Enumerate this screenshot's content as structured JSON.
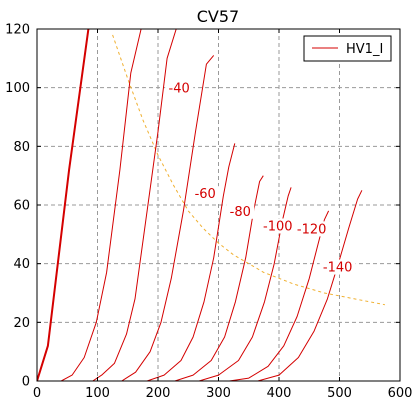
{
  "chart_data": {
    "type": "line",
    "title": "CV57",
    "xlabel": "",
    "ylabel": "",
    "xlim": [
      0,
      600
    ],
    "ylim": [
      0,
      120
    ],
    "xticks": [
      0,
      100,
      200,
      300,
      400,
      500,
      600
    ],
    "yticks": [
      0,
      20,
      40,
      60,
      80,
      100,
      120
    ],
    "grid": true,
    "legend": {
      "placement": "top-right",
      "entries": [
        {
          "label": "HV1_I",
          "color": "#d40000"
        }
      ]
    },
    "colors": {
      "curve": "#d40000",
      "load_line": "#f0b030",
      "grid": "#9a9a9a",
      "axis": "#000000"
    },
    "series": [
      {
        "label": "",
        "bold": true,
        "points": [
          [
            0,
            0
          ],
          [
            18,
            12
          ],
          [
            53,
            72
          ],
          [
            85,
            120
          ]
        ]
      },
      {
        "label": "",
        "points": [
          [
            40,
            0
          ],
          [
            58,
            2
          ],
          [
            78,
            8
          ],
          [
            98,
            20
          ],
          [
            115,
            37
          ],
          [
            137,
            72
          ],
          [
            155,
            105
          ],
          [
            172,
            120
          ]
        ]
      },
      {
        "label": "",
        "points": [
          [
            92,
            0
          ],
          [
            107,
            2
          ],
          [
            128,
            6
          ],
          [
            148,
            16
          ],
          [
            162,
            28
          ],
          [
            180,
            55
          ],
          [
            200,
            85
          ],
          [
            215,
            110
          ],
          [
            230,
            120
          ]
        ]
      },
      {
        "label": "-40",
        "label_pos": [
          235,
          99
        ],
        "points": [
          [
            140,
            0
          ],
          [
            163,
            3
          ],
          [
            187,
            10
          ],
          [
            205,
            20
          ],
          [
            222,
            35
          ],
          [
            242,
            58
          ],
          [
            262,
            85
          ],
          [
            280,
            108
          ],
          [
            292,
            111
          ]
        ]
      },
      {
        "label": "-60",
        "label_pos": [
          278,
          63
        ],
        "points": [
          [
            182,
            0
          ],
          [
            210,
            2
          ],
          [
            238,
            7
          ],
          [
            258,
            15
          ],
          [
            276,
            27
          ],
          [
            292,
            42
          ],
          [
            308,
            63
          ],
          [
            317,
            73
          ],
          [
            327,
            81
          ]
        ]
      },
      {
        "label": "-80",
        "label_pos": [
          336,
          57
        ],
        "points": [
          [
            228,
            0
          ],
          [
            258,
            2
          ],
          [
            288,
            7
          ],
          [
            310,
            15
          ],
          [
            328,
            27
          ],
          [
            345,
            42
          ],
          [
            358,
            58
          ],
          [
            368,
            68
          ],
          [
            374,
            70
          ]
        ]
      },
      {
        "label": "-100",
        "label_pos": [
          398,
          52
        ],
        "points": [
          [
            268,
            0
          ],
          [
            300,
            2
          ],
          [
            333,
            7
          ],
          [
            356,
            15
          ],
          [
            376,
            27
          ],
          [
            392,
            40
          ],
          [
            406,
            55
          ],
          [
            415,
            63
          ],
          [
            420,
            66
          ]
        ]
      },
      {
        "label": "-120",
        "label_pos": [
          454,
          51
        ],
        "points": [
          [
            318,
            0
          ],
          [
            350,
            1
          ],
          [
            382,
            5
          ],
          [
            408,
            12
          ],
          [
            430,
            22
          ],
          [
            450,
            35
          ],
          [
            465,
            47
          ],
          [
            475,
            55
          ],
          [
            482,
            58
          ]
        ]
      },
      {
        "label": "-140",
        "label_pos": [
          497,
          38
        ],
        "points": [
          [
            365,
            0
          ],
          [
            400,
            2
          ],
          [
            432,
            8
          ],
          [
            458,
            17
          ],
          [
            480,
            28
          ],
          [
            498,
            40
          ],
          [
            515,
            52
          ],
          [
            530,
            62
          ],
          [
            537,
            65
          ]
        ]
      }
    ],
    "load_line": {
      "style": "dashed",
      "points": [
        [
          125,
          118
        ],
        [
          150,
          103
        ],
        [
          175,
          89
        ],
        [
          200,
          77
        ],
        [
          225,
          67
        ],
        [
          250,
          58
        ],
        [
          275,
          52
        ],
        [
          300,
          47
        ],
        [
          325,
          43
        ],
        [
          350,
          40
        ],
        [
          375,
          37
        ],
        [
          400,
          35
        ],
        [
          425,
          33
        ],
        [
          450,
          31.5
        ],
        [
          475,
          30
        ],
        [
          500,
          29
        ],
        [
          525,
          28
        ],
        [
          550,
          27
        ],
        [
          575,
          26
        ]
      ]
    }
  }
}
